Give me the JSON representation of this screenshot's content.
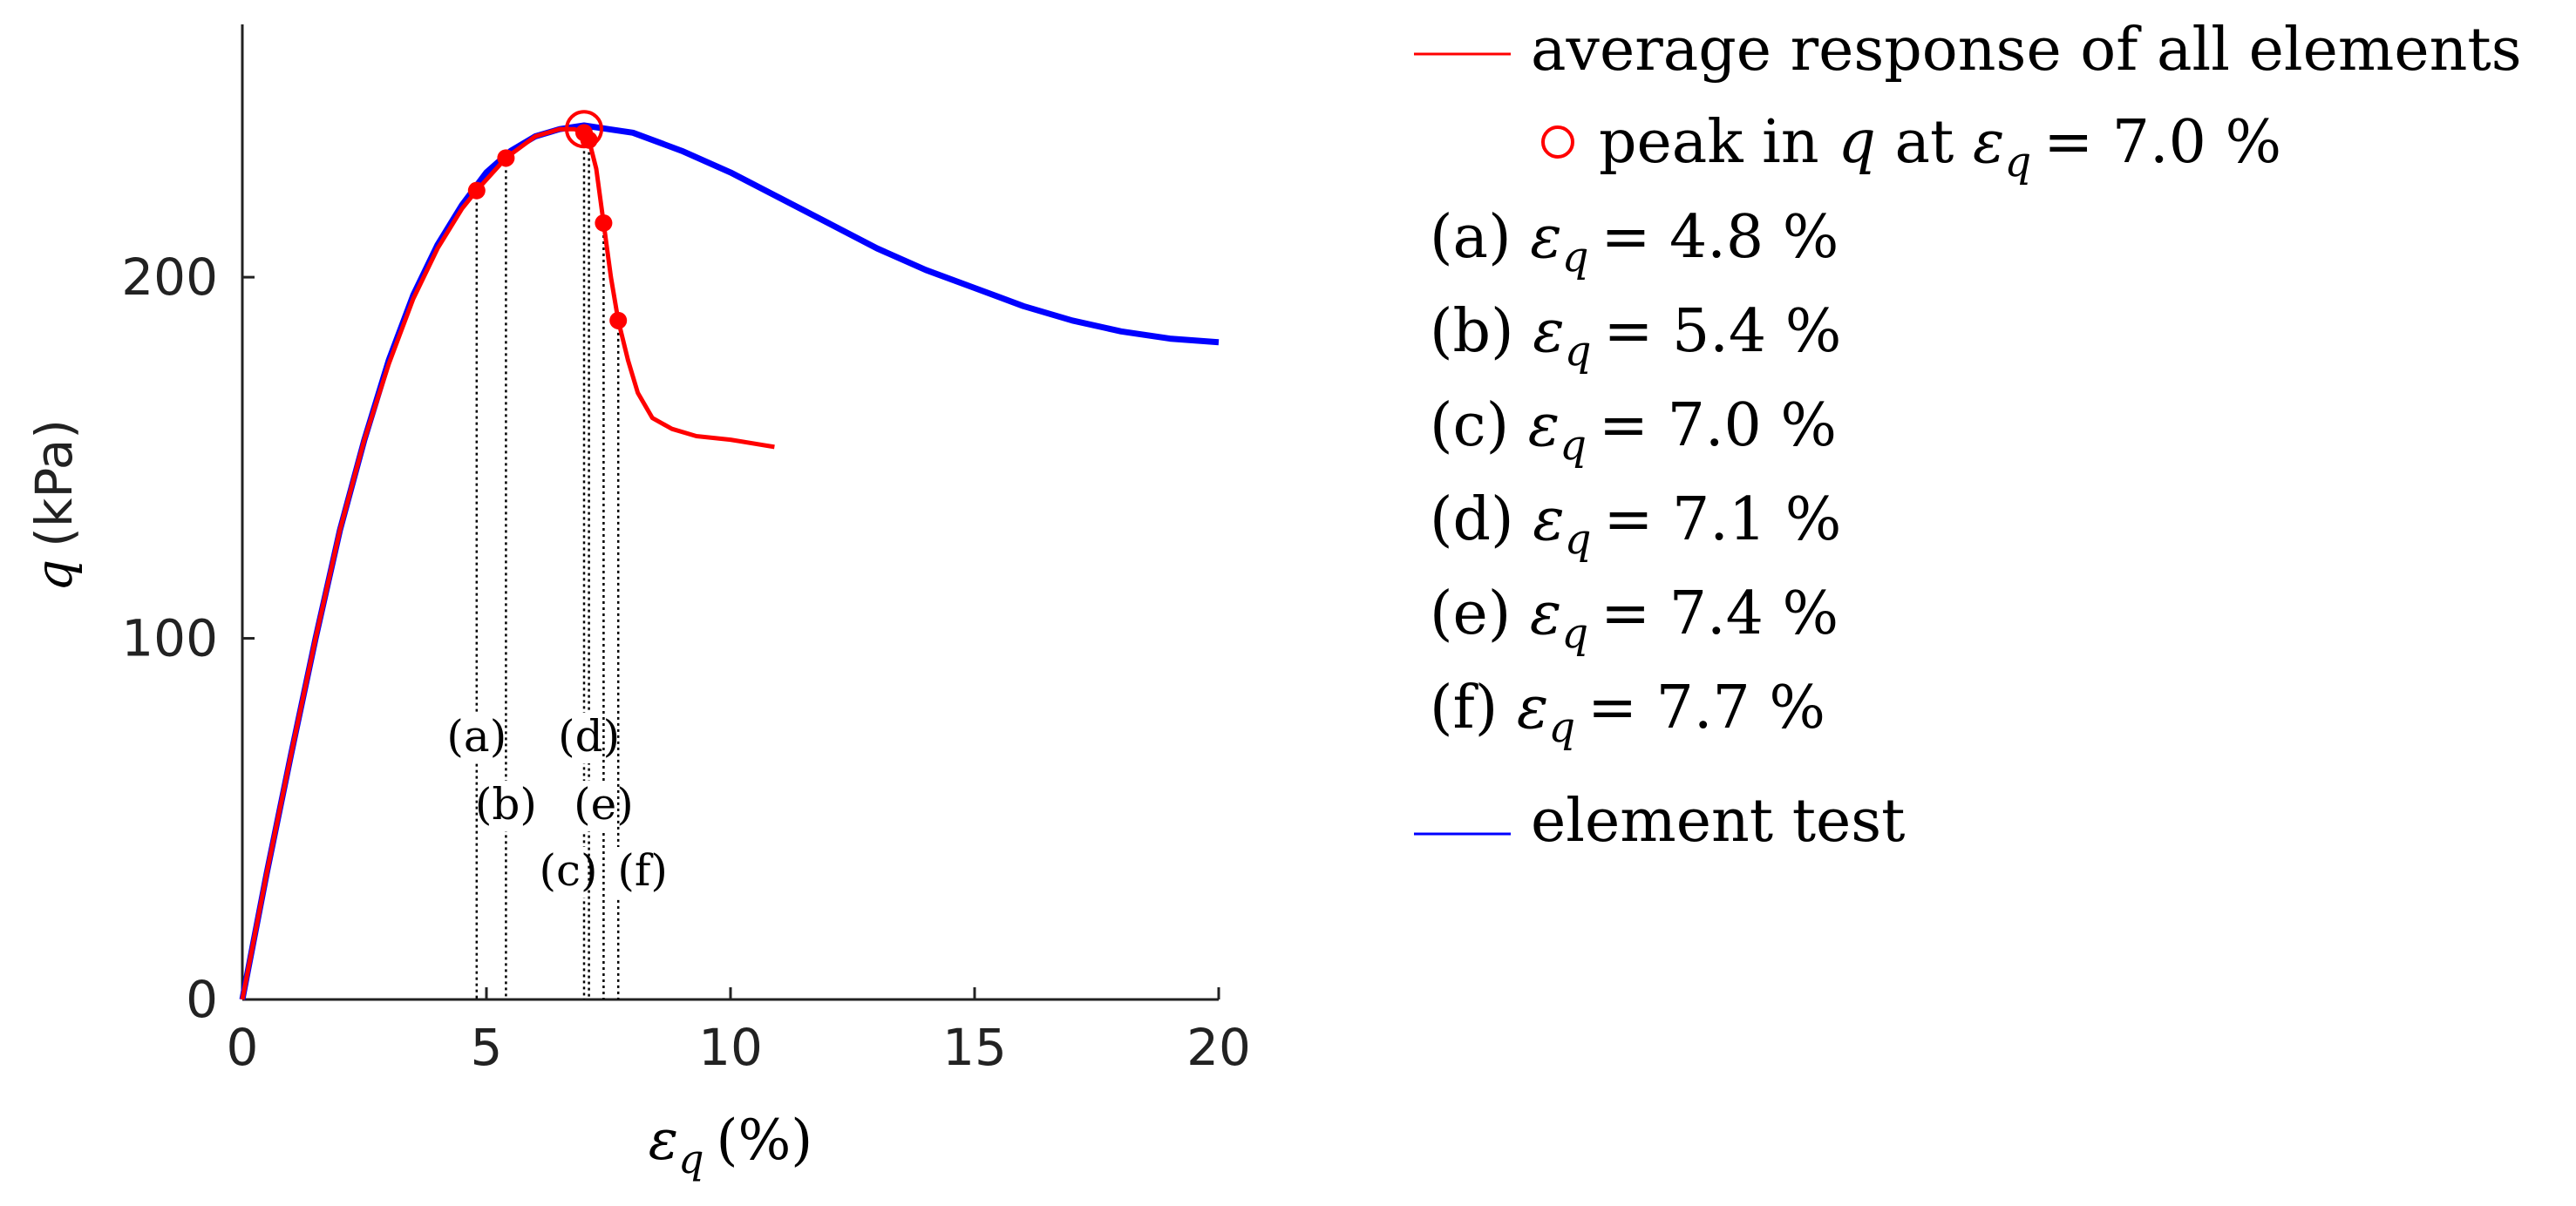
{
  "chart_data": {
    "type": "line",
    "xlabel": "εq (%)",
    "xlabel_symbol": "ε",
    "xlabel_subscript": "q",
    "xlabel_unit": "(%)",
    "ylabel": "q (kPa)",
    "ylabel_symbol": "q",
    "ylabel_unit": "(kPa)",
    "xlim": [
      0,
      20
    ],
    "ylim": [
      0,
      270
    ],
    "xticks": [
      0,
      5,
      10,
      15,
      20
    ],
    "yticks": [
      0,
      100,
      200
    ],
    "grid": false,
    "legend_position": "right",
    "series": [
      {
        "name": "average response of all elements",
        "color": "#ff0000",
        "x": [
          0,
          0.5,
          1,
          1.5,
          2,
          2.5,
          3,
          3.5,
          4,
          4.5,
          4.8,
          5.4,
          6,
          6.5,
          6.8,
          7.0,
          7.1,
          7.25,
          7.4,
          7.55,
          7.7,
          7.9,
          8.1,
          8.4,
          8.8,
          9.3,
          10,
          10.9
        ],
        "y": [
          0,
          35,
          68,
          100,
          130,
          155,
          176,
          194,
          208,
          219,
          224,
          233,
          239,
          241,
          241,
          240,
          238,
          230,
          215,
          200,
          188,
          177,
          168,
          161,
          158,
          156,
          155,
          153
        ]
      },
      {
        "name": "element test",
        "color": "#0000ff",
        "x": [
          0,
          0.5,
          1,
          1.5,
          2,
          2.5,
          3,
          3.5,
          4,
          4.5,
          5,
          5.5,
          6,
          6.5,
          7,
          7.5,
          8,
          9,
          10,
          11,
          12,
          13,
          14,
          15,
          16,
          17,
          18,
          19,
          20
        ],
        "y": [
          0,
          35,
          68,
          100,
          130,
          155,
          177,
          195,
          209,
          220,
          229,
          235,
          239,
          241,
          242,
          241,
          240,
          235,
          229,
          222,
          215,
          208,
          202,
          197,
          192,
          188,
          185,
          183,
          182
        ]
      }
    ],
    "peak": {
      "label": "peak in q at εq = 7.0 %",
      "x": 7.0,
      "y": 241,
      "color": "#ff0000"
    },
    "marked_points": [
      {
        "tag": "(a)",
        "x": 4.8,
        "y": 224,
        "value": "4.8 %"
      },
      {
        "tag": "(b)",
        "x": 5.4,
        "y": 233,
        "value": "5.4 %"
      },
      {
        "tag": "(c)",
        "x": 7.0,
        "y": 240,
        "value": "7.0 %"
      },
      {
        "tag": "(d)",
        "x": 7.1,
        "y": 238,
        "value": "7.1 %"
      },
      {
        "tag": "(e)",
        "x": 7.4,
        "y": 215,
        "value": "7.4 %"
      },
      {
        "tag": "(f)",
        "x": 7.7,
        "y": 188,
        "value": "7.7 %"
      }
    ],
    "legend": {
      "series_red": "average response of all elements",
      "peak_prefix": "peak in",
      "peak_q": "q",
      "peak_at": "at",
      "peak_eps": "ε",
      "peak_sub": "q",
      "peak_value": "= 7.0 %",
      "eps_symbol": "ε",
      "eps_sub": "q",
      "equals": "=",
      "series_blue": "element test"
    }
  }
}
